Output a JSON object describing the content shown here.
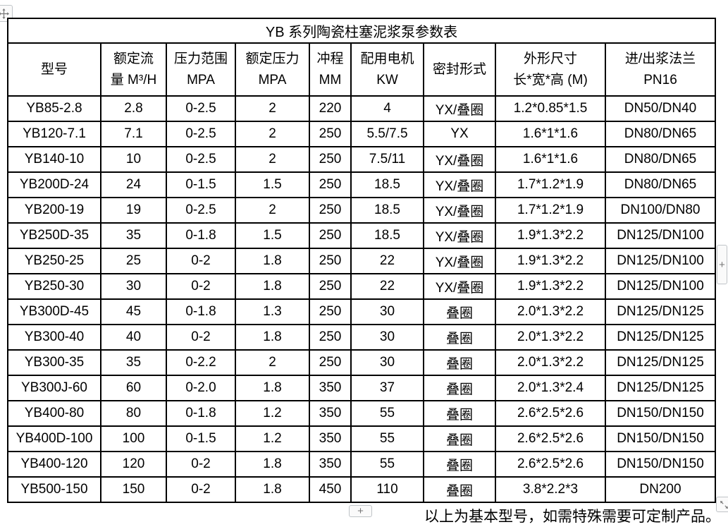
{
  "table": {
    "title": "YB 系列陶瓷柱塞泥浆泵参数表",
    "columns": [
      {
        "lines": [
          "型号"
        ]
      },
      {
        "lines": [
          "额定流",
          "量 M³/H"
        ]
      },
      {
        "lines": [
          "压力范围",
          "MPA"
        ]
      },
      {
        "lines": [
          "额定压力",
          "MPA"
        ]
      },
      {
        "lines": [
          "冲程",
          "MM"
        ]
      },
      {
        "lines": [
          "配用电机",
          "KW"
        ]
      },
      {
        "lines": [
          "密封形式"
        ]
      },
      {
        "lines": [
          "外形尺寸",
          "长*宽*高 (M)"
        ]
      },
      {
        "lines": [
          "进/出浆法兰",
          "PN16"
        ]
      }
    ],
    "rows": [
      [
        "YB85-2.8",
        "2.8",
        "0-2.5",
        "2",
        "220",
        "4",
        "YX/叠圈",
        "1.2*0.85*1.5",
        "DN50/DN40"
      ],
      [
        "YB120-7.1",
        "7.1",
        "0-2.5",
        "2",
        "250",
        "5.5/7.5",
        "YX",
        "1.6*1*1.6",
        "DN80/DN65"
      ],
      [
        "YB140-10",
        "10",
        "0-2.5",
        "2",
        "250",
        "7.5/11",
        "YX/叠圈",
        "1.6*1*1.6",
        "DN80/DN65"
      ],
      [
        "YB200D-24",
        "24",
        "0-1.5",
        "1.5",
        "250",
        "18.5",
        "YX/叠圈",
        "1.7*1.2*1.9",
        "DN80/DN65"
      ],
      [
        "YB200-19",
        "19",
        "0-2.5",
        "2",
        "250",
        "18.5",
        "YX/叠圈",
        "1.7*1.2*1.9",
        "DN100/DN80"
      ],
      [
        "YB250D-35",
        "35",
        "0-1.8",
        "1.5",
        "250",
        "18.5",
        "YX/叠圈",
        "1.9*1.3*2.2",
        "DN125/DN100"
      ],
      [
        "YB250-25",
        "25",
        "0-2",
        "1.8",
        "250",
        "22",
        "YX/叠圈",
        "1.9*1.3*2.2",
        "DN125/DN100"
      ],
      [
        "YB250-30",
        "30",
        "0-2",
        "1.8",
        "250",
        "22",
        "YX/叠圈",
        "1.9*1.3*2.2",
        "DN125/DN100"
      ],
      [
        "YB300D-45",
        "45",
        "0-1.8",
        "1.3",
        "250",
        "30",
        "叠圈",
        "2.0*1.3*2.2",
        "DN125/DN125"
      ],
      [
        "YB300-40",
        "40",
        "0-2",
        "1.8",
        "250",
        "30",
        "叠圈",
        "2.0*1.3*2.2",
        "DN125/DN125"
      ],
      [
        "YB300-35",
        "35",
        "0-2.2",
        "2",
        "250",
        "30",
        "叠圈",
        "2.0*1.3*2.2",
        "DN125/DN125"
      ],
      [
        "YB300J-60",
        "60",
        "0-2.0",
        "1.8",
        "350",
        "37",
        "叠圈",
        "2.0*1.3*2.4",
        "DN125/DN125"
      ],
      [
        "YB400-80",
        "80",
        "0-1.8",
        "1.2",
        "350",
        "55",
        "叠圈",
        "2.6*2.5*2.6",
        "DN150/DN150"
      ],
      [
        "YB400D-100",
        "100",
        "0-1.5",
        "1.2",
        "350",
        "55",
        "叠圈",
        "2.6*2.5*2.6",
        "DN150/DN150"
      ],
      [
        "YB400-120",
        "120",
        "0-2",
        "1.8",
        "350",
        "55",
        "叠圈",
        "2.6*2.5*2.6",
        "DN150/DN150"
      ],
      [
        "YB500-150",
        "150",
        "0-2",
        "1.8",
        "450",
        "110",
        "叠圈",
        "3.8*2.2*3",
        "DN200"
      ]
    ]
  },
  "footer_note": "以上为基本型号，如需特殊需要可定制产品。",
  "controls": {
    "add_row_icon": "+",
    "add_column_icon": "+"
  },
  "colors": {
    "table_border": "#000000",
    "text": "#000000",
    "control_bg": "#fafafa",
    "control_border": "#c0c4c8",
    "control_glyph": "#777777"
  }
}
